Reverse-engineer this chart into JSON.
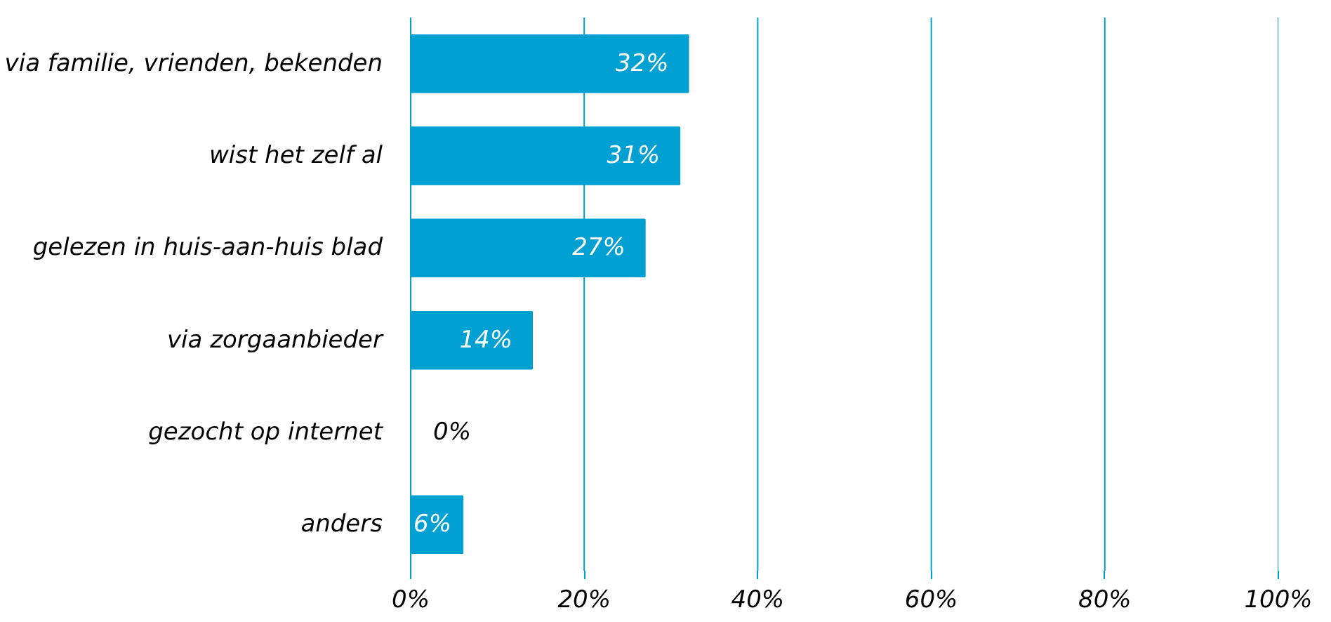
{
  "chart_data": {
    "type": "bar",
    "orientation": "horizontal",
    "categories": [
      "via familie, vrienden, bekenden",
      "wist het zelf al",
      "gelezen in huis-aan-huis blad",
      "via zorgaanbieder",
      "gezocht op internet",
      "anders"
    ],
    "values": [
      32,
      31,
      27,
      14,
      0,
      6
    ],
    "value_labels": [
      "32%",
      "31%",
      "27%",
      "14%",
      "0%",
      "6%"
    ],
    "color": "#00a0d2",
    "xlim": [
      0,
      100
    ],
    "xticks": [
      {
        "value": 0,
        "label": "0%"
      },
      {
        "value": 20,
        "label": "20%"
      },
      {
        "value": 40,
        "label": "40%"
      },
      {
        "value": 60,
        "label": "60%"
      },
      {
        "value": 80,
        "label": "80%"
      },
      {
        "value": 100,
        "label": "100%"
      }
    ],
    "grid": "x"
  }
}
